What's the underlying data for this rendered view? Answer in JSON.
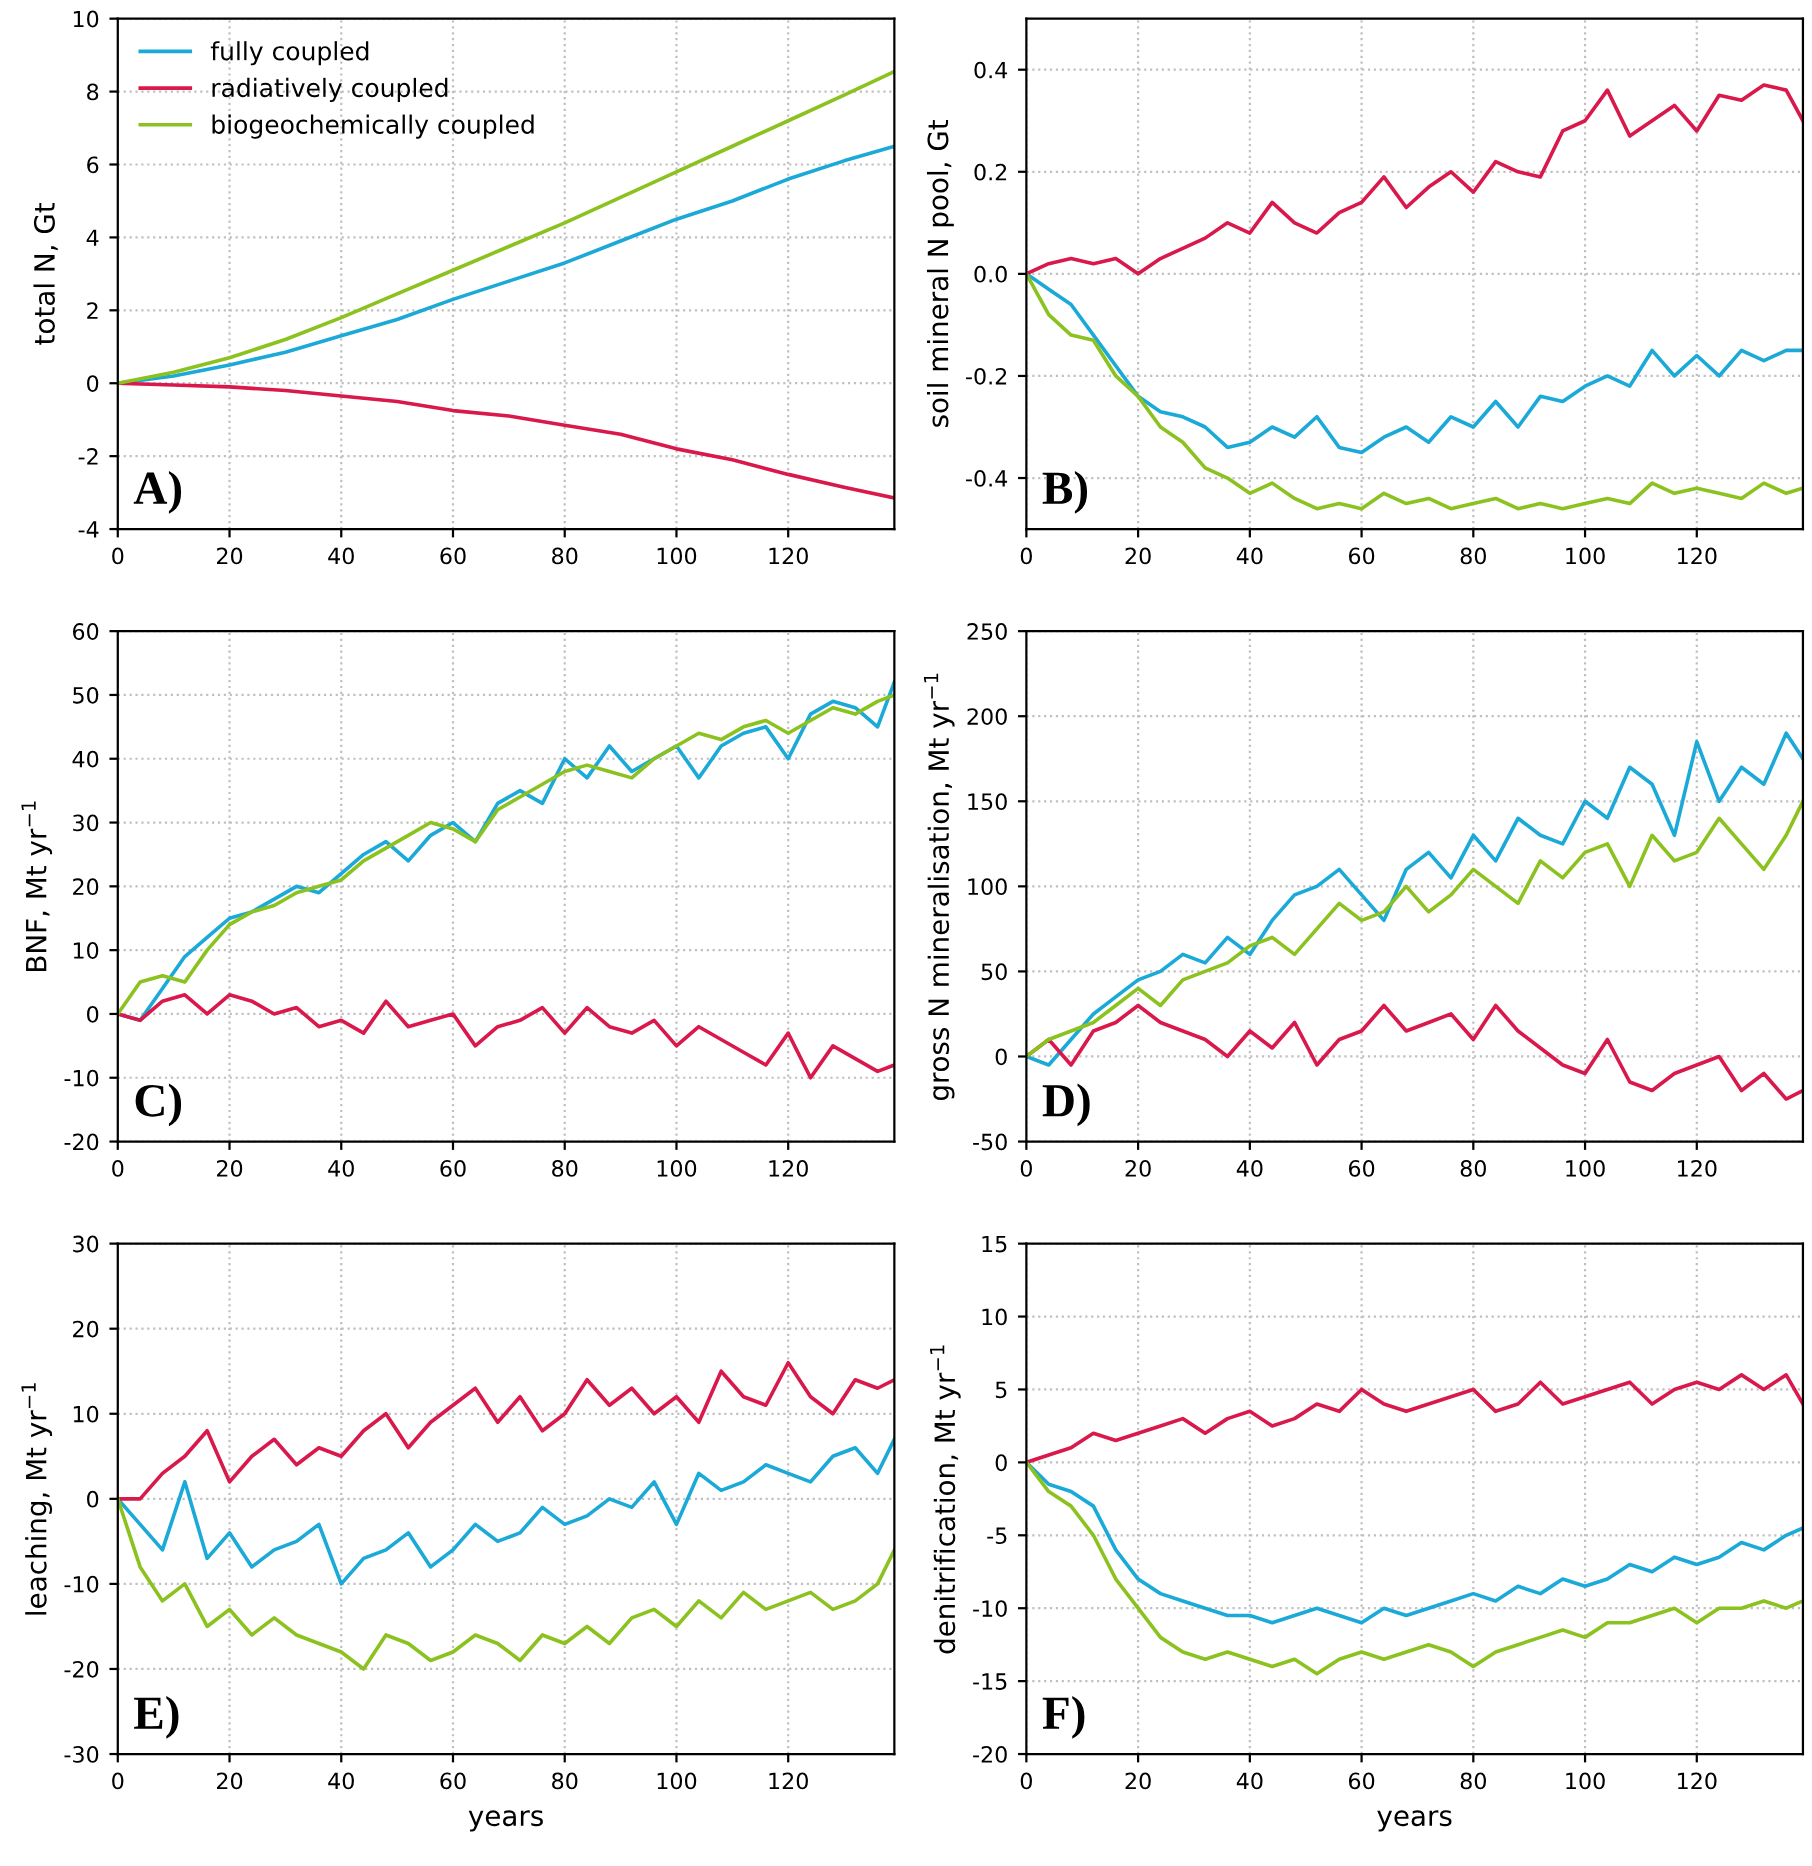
{
  "chart_data": [
    {
      "type": "line",
      "ylabel": "total N, Gt",
      "annotations": [
        "A)"
      ],
      "grid": true,
      "legend": "top left",
      "line_style": "solid",
      "xlim": [
        0,
        139
      ],
      "xticks": [
        0,
        20,
        40,
        60,
        80,
        100,
        120
      ],
      "ylim": [
        -4,
        10
      ],
      "yticks": [
        -4,
        -2,
        0,
        2,
        4,
        6,
        8,
        10
      ],
      "x": [
        0,
        10,
        20,
        30,
        40,
        50,
        60,
        70,
        80,
        90,
        100,
        110,
        120,
        130,
        139
      ],
      "series": [
        {
          "name": "fully coupled",
          "color": "#1ba9d8",
          "values": [
            0,
            0.2,
            0.5,
            0.85,
            1.3,
            1.75,
            2.3,
            2.8,
            3.3,
            3.9,
            4.5,
            5.0,
            5.6,
            6.1,
            6.5
          ]
        },
        {
          "name": "radiatively coupled",
          "color": "#d9184b",
          "values": [
            0,
            -0.05,
            -0.1,
            -0.2,
            -0.35,
            -0.5,
            -0.75,
            -0.9,
            -1.15,
            -1.4,
            -1.8,
            -2.1,
            -2.5,
            -2.85,
            -3.15
          ]
        },
        {
          "name": "biogeochemically coupled",
          "color": "#8cc220",
          "values": [
            0,
            0.3,
            0.7,
            1.2,
            1.8,
            2.45,
            3.1,
            3.75,
            4.4,
            5.1,
            5.8,
            6.5,
            7.2,
            7.9,
            8.55
          ]
        }
      ]
    },
    {
      "type": "line",
      "ylabel": "soil mineral N pool, Gt",
      "annotations": [
        "B)"
      ],
      "grid": true,
      "line_style": "solid",
      "xlim": [
        0,
        139
      ],
      "xticks": [
        0,
        20,
        40,
        60,
        80,
        100,
        120
      ],
      "ylim": [
        -0.5,
        0.5
      ],
      "yticks": [
        -0.4,
        -0.2,
        {
          "value": 0,
          "label": "0.0"
        },
        0.2,
        0.4
      ],
      "x": [
        0,
        4,
        8,
        12,
        16,
        20,
        24,
        28,
        32,
        36,
        40,
        44,
        48,
        52,
        56,
        60,
        64,
        68,
        72,
        76,
        80,
        84,
        88,
        92,
        96,
        100,
        104,
        108,
        112,
        116,
        120,
        124,
        128,
        132,
        136,
        139
      ],
      "series": [
        {
          "color": "#1ba9d8",
          "values": [
            0,
            -0.03,
            -0.06,
            -0.12,
            -0.18,
            -0.24,
            -0.27,
            -0.28,
            -0.3,
            -0.34,
            -0.33,
            -0.3,
            -0.32,
            -0.28,
            -0.34,
            -0.35,
            -0.32,
            -0.3,
            -0.33,
            -0.28,
            -0.3,
            -0.25,
            -0.3,
            -0.24,
            -0.25,
            -0.22,
            -0.2,
            -0.22,
            -0.15,
            -0.2,
            -0.16,
            -0.2,
            -0.15,
            -0.17,
            -0.15,
            -0.15
          ]
        },
        {
          "color": "#d9184b",
          "values": [
            0,
            0.02,
            0.03,
            0.02,
            0.03,
            0.0,
            0.03,
            0.05,
            0.07,
            0.1,
            0.08,
            0.14,
            0.1,
            0.08,
            0.12,
            0.14,
            0.19,
            0.13,
            0.17,
            0.2,
            0.16,
            0.22,
            0.2,
            0.19,
            0.28,
            0.3,
            0.36,
            0.27,
            0.3,
            0.33,
            0.28,
            0.35,
            0.34,
            0.37,
            0.36,
            0.3
          ]
        },
        {
          "color": "#8cc220",
          "values": [
            0,
            -0.08,
            -0.12,
            -0.13,
            -0.2,
            -0.24,
            -0.3,
            -0.33,
            -0.38,
            -0.4,
            -0.43,
            -0.41,
            -0.44,
            -0.46,
            -0.45,
            -0.46,
            -0.43,
            -0.45,
            -0.44,
            -0.46,
            -0.45,
            -0.44,
            -0.46,
            -0.45,
            -0.46,
            -0.45,
            -0.44,
            -0.45,
            -0.41,
            -0.43,
            -0.42,
            -0.43,
            -0.44,
            -0.41,
            -0.43,
            -0.42
          ]
        }
      ]
    },
    {
      "type": "line",
      "ylabel": "BNF, Mt yr$^{−1}$",
      "annotations": [
        "C)"
      ],
      "grid": true,
      "line_style": "solid",
      "xlim": [
        0,
        139
      ],
      "xticks": [
        0,
        20,
        40,
        60,
        80,
        100,
        120
      ],
      "ylim": [
        -20,
        60
      ],
      "yticks": [
        -20,
        -10,
        0,
        10,
        20,
        30,
        40,
        50,
        60
      ],
      "x": [
        0,
        4,
        8,
        12,
        16,
        20,
        24,
        28,
        32,
        36,
        40,
        44,
        48,
        52,
        56,
        60,
        64,
        68,
        72,
        76,
        80,
        84,
        88,
        92,
        96,
        100,
        104,
        108,
        112,
        116,
        120,
        124,
        128,
        132,
        136,
        139
      ],
      "series": [
        {
          "color": "#1ba9d8",
          "values": [
            0,
            -1,
            4,
            9,
            12,
            15,
            16,
            18,
            20,
            19,
            22,
            25,
            27,
            24,
            28,
            30,
            27,
            33,
            35,
            33,
            40,
            37,
            42,
            38,
            40,
            42,
            37,
            42,
            44,
            45,
            40,
            47,
            49,
            48,
            45,
            52
          ]
        },
        {
          "color": "#d9184b",
          "values": [
            0,
            -1,
            2,
            3,
            0,
            3,
            2,
            0,
            1,
            -2,
            -1,
            -3,
            2,
            -2,
            -1,
            0,
            -5,
            -2,
            -1,
            1,
            -3,
            1,
            -2,
            -3,
            -1,
            -5,
            -2,
            -4,
            -6,
            -8,
            -3,
            -10,
            -5,
            -7,
            -9,
            -8
          ]
        },
        {
          "color": "#8cc220",
          "values": [
            0,
            5,
            6,
            5,
            10,
            14,
            16,
            17,
            19,
            20,
            21,
            24,
            26,
            28,
            30,
            29,
            27,
            32,
            34,
            36,
            38,
            39,
            38,
            37,
            40,
            42,
            44,
            43,
            45,
            46,
            44,
            46,
            48,
            47,
            49,
            50
          ]
        }
      ]
    },
    {
      "type": "line",
      "ylabel": "gross N mineralisation, Mt yr$^{−1}$",
      "annotations": [
        "D)"
      ],
      "grid": true,
      "line_style": "solid",
      "xlim": [
        0,
        139
      ],
      "xticks": [
        0,
        20,
        40,
        60,
        80,
        100,
        120
      ],
      "ylim": [
        -50,
        250
      ],
      "yticks": [
        -50,
        0,
        50,
        100,
        150,
        200,
        250
      ],
      "x": [
        0,
        4,
        8,
        12,
        16,
        20,
        24,
        28,
        32,
        36,
        40,
        44,
        48,
        52,
        56,
        60,
        64,
        68,
        72,
        76,
        80,
        84,
        88,
        92,
        96,
        100,
        104,
        108,
        112,
        116,
        120,
        124,
        128,
        132,
        136,
        139
      ],
      "series": [
        {
          "color": "#1ba9d8",
          "values": [
            0,
            -5,
            10,
            25,
            35,
            45,
            50,
            60,
            55,
            70,
            60,
            80,
            95,
            100,
            110,
            95,
            80,
            110,
            120,
            105,
            130,
            115,
            140,
            130,
            125,
            150,
            140,
            170,
            160,
            130,
            185,
            150,
            170,
            160,
            190,
            175
          ]
        },
        {
          "color": "#d9184b",
          "values": [
            0,
            10,
            -5,
            15,
            20,
            30,
            20,
            15,
            10,
            0,
            15,
            5,
            20,
            -5,
            10,
            15,
            30,
            15,
            20,
            25,
            10,
            30,
            15,
            5,
            -5,
            -10,
            10,
            -15,
            -20,
            -10,
            -5,
            0,
            -20,
            -10,
            -25,
            -20
          ]
        },
        {
          "color": "#8cc220",
          "values": [
            0,
            10,
            15,
            20,
            30,
            40,
            30,
            45,
            50,
            55,
            65,
            70,
            60,
            75,
            90,
            80,
            85,
            100,
            85,
            95,
            110,
            100,
            90,
            115,
            105,
            120,
            125,
            100,
            130,
            115,
            120,
            140,
            125,
            110,
            130,
            150
          ]
        }
      ]
    },
    {
      "type": "line",
      "ylabel": "leaching, Mt yr$^{−1}$",
      "xlabel": "years",
      "annotations": [
        "E)"
      ],
      "grid": true,
      "line_style": "solid",
      "xlim": [
        0,
        139
      ],
      "xticks": [
        0,
        20,
        40,
        60,
        80,
        100,
        120
      ],
      "ylim": [
        -30,
        30
      ],
      "yticks": [
        -30,
        -20,
        -10,
        0,
        10,
        20,
        30
      ],
      "x": [
        0,
        4,
        8,
        12,
        16,
        20,
        24,
        28,
        32,
        36,
        40,
        44,
        48,
        52,
        56,
        60,
        64,
        68,
        72,
        76,
        80,
        84,
        88,
        92,
        96,
        100,
        104,
        108,
        112,
        116,
        120,
        124,
        128,
        132,
        136,
        139
      ],
      "series": [
        {
          "color": "#1ba9d8",
          "values": [
            0,
            -3,
            -6,
            2,
            -7,
            -4,
            -8,
            -6,
            -5,
            -3,
            -10,
            -7,
            -6,
            -4,
            -8,
            -6,
            -3,
            -5,
            -4,
            -1,
            -3,
            -2,
            0,
            -1,
            2,
            -3,
            3,
            1,
            2,
            4,
            3,
            2,
            5,
            6,
            3,
            7
          ]
        },
        {
          "color": "#d9184b",
          "values": [
            0,
            0,
            3,
            5,
            8,
            2,
            5,
            7,
            4,
            6,
            5,
            8,
            10,
            6,
            9,
            11,
            13,
            9,
            12,
            8,
            10,
            14,
            11,
            13,
            10,
            12,
            9,
            15,
            12,
            11,
            16,
            12,
            10,
            14,
            13,
            14
          ]
        },
        {
          "color": "#8cc220",
          "values": [
            0,
            -8,
            -12,
            -10,
            -15,
            -13,
            -16,
            -14,
            -16,
            -17,
            -18,
            -20,
            -16,
            -17,
            -19,
            -18,
            -16,
            -17,
            -19,
            -16,
            -17,
            -15,
            -17,
            -14,
            -13,
            -15,
            -12,
            -14,
            -11,
            -13,
            -12,
            -11,
            -13,
            -12,
            -10,
            -6
          ]
        }
      ]
    },
    {
      "type": "line",
      "ylabel": "denitrification, Mt yr$^{−1}$",
      "xlabel": "years",
      "annotations": [
        "F)"
      ],
      "grid": true,
      "line_style": "solid",
      "xlim": [
        0,
        139
      ],
      "xticks": [
        0,
        20,
        40,
        60,
        80,
        100,
        120
      ],
      "ylim": [
        -20,
        15
      ],
      "yticks": [
        -20,
        -15,
        -10,
        -5,
        0,
        5,
        10,
        15
      ],
      "x": [
        0,
        4,
        8,
        12,
        16,
        20,
        24,
        28,
        32,
        36,
        40,
        44,
        48,
        52,
        56,
        60,
        64,
        68,
        72,
        76,
        80,
        84,
        88,
        92,
        96,
        100,
        104,
        108,
        112,
        116,
        120,
        124,
        128,
        132,
        136,
        139
      ],
      "series": [
        {
          "color": "#1ba9d8",
          "values": [
            0,
            -1.5,
            -2,
            -3,
            -6,
            -8,
            -9,
            -9.5,
            -10,
            -10.5,
            -10.5,
            -11,
            -10.5,
            -10,
            -10.5,
            -11,
            -10,
            -10.5,
            -10,
            -9.5,
            -9,
            -9.5,
            -8.5,
            -9,
            -8,
            -8.5,
            -8,
            -7,
            -7.5,
            -6.5,
            -7,
            -6.5,
            -5.5,
            -6,
            -5,
            -4.5
          ]
        },
        {
          "color": "#d9184b",
          "values": [
            0,
            0.5,
            1,
            2,
            1.5,
            2,
            2.5,
            3,
            2,
            3,
            3.5,
            2.5,
            3,
            4,
            3.5,
            5,
            4,
            3.5,
            4,
            4.5,
            5,
            3.5,
            4,
            5.5,
            4,
            4.5,
            5,
            5.5,
            4,
            5,
            5.5,
            5,
            6,
            5,
            6,
            4
          ]
        },
        {
          "color": "#8cc220",
          "values": [
            0,
            -2,
            -3,
            -5,
            -8,
            -10,
            -12,
            -13,
            -13.5,
            -13,
            -13.5,
            -14,
            -13.5,
            -14.5,
            -13.5,
            -13,
            -13.5,
            -13,
            -12.5,
            -13,
            -14,
            -13,
            -12.5,
            -12,
            -11.5,
            -12,
            -11,
            -11,
            -10.5,
            -10,
            -11,
            -10,
            -10,
            -9.5,
            -10,
            -9.5
          ]
        }
      ]
    }
  ]
}
